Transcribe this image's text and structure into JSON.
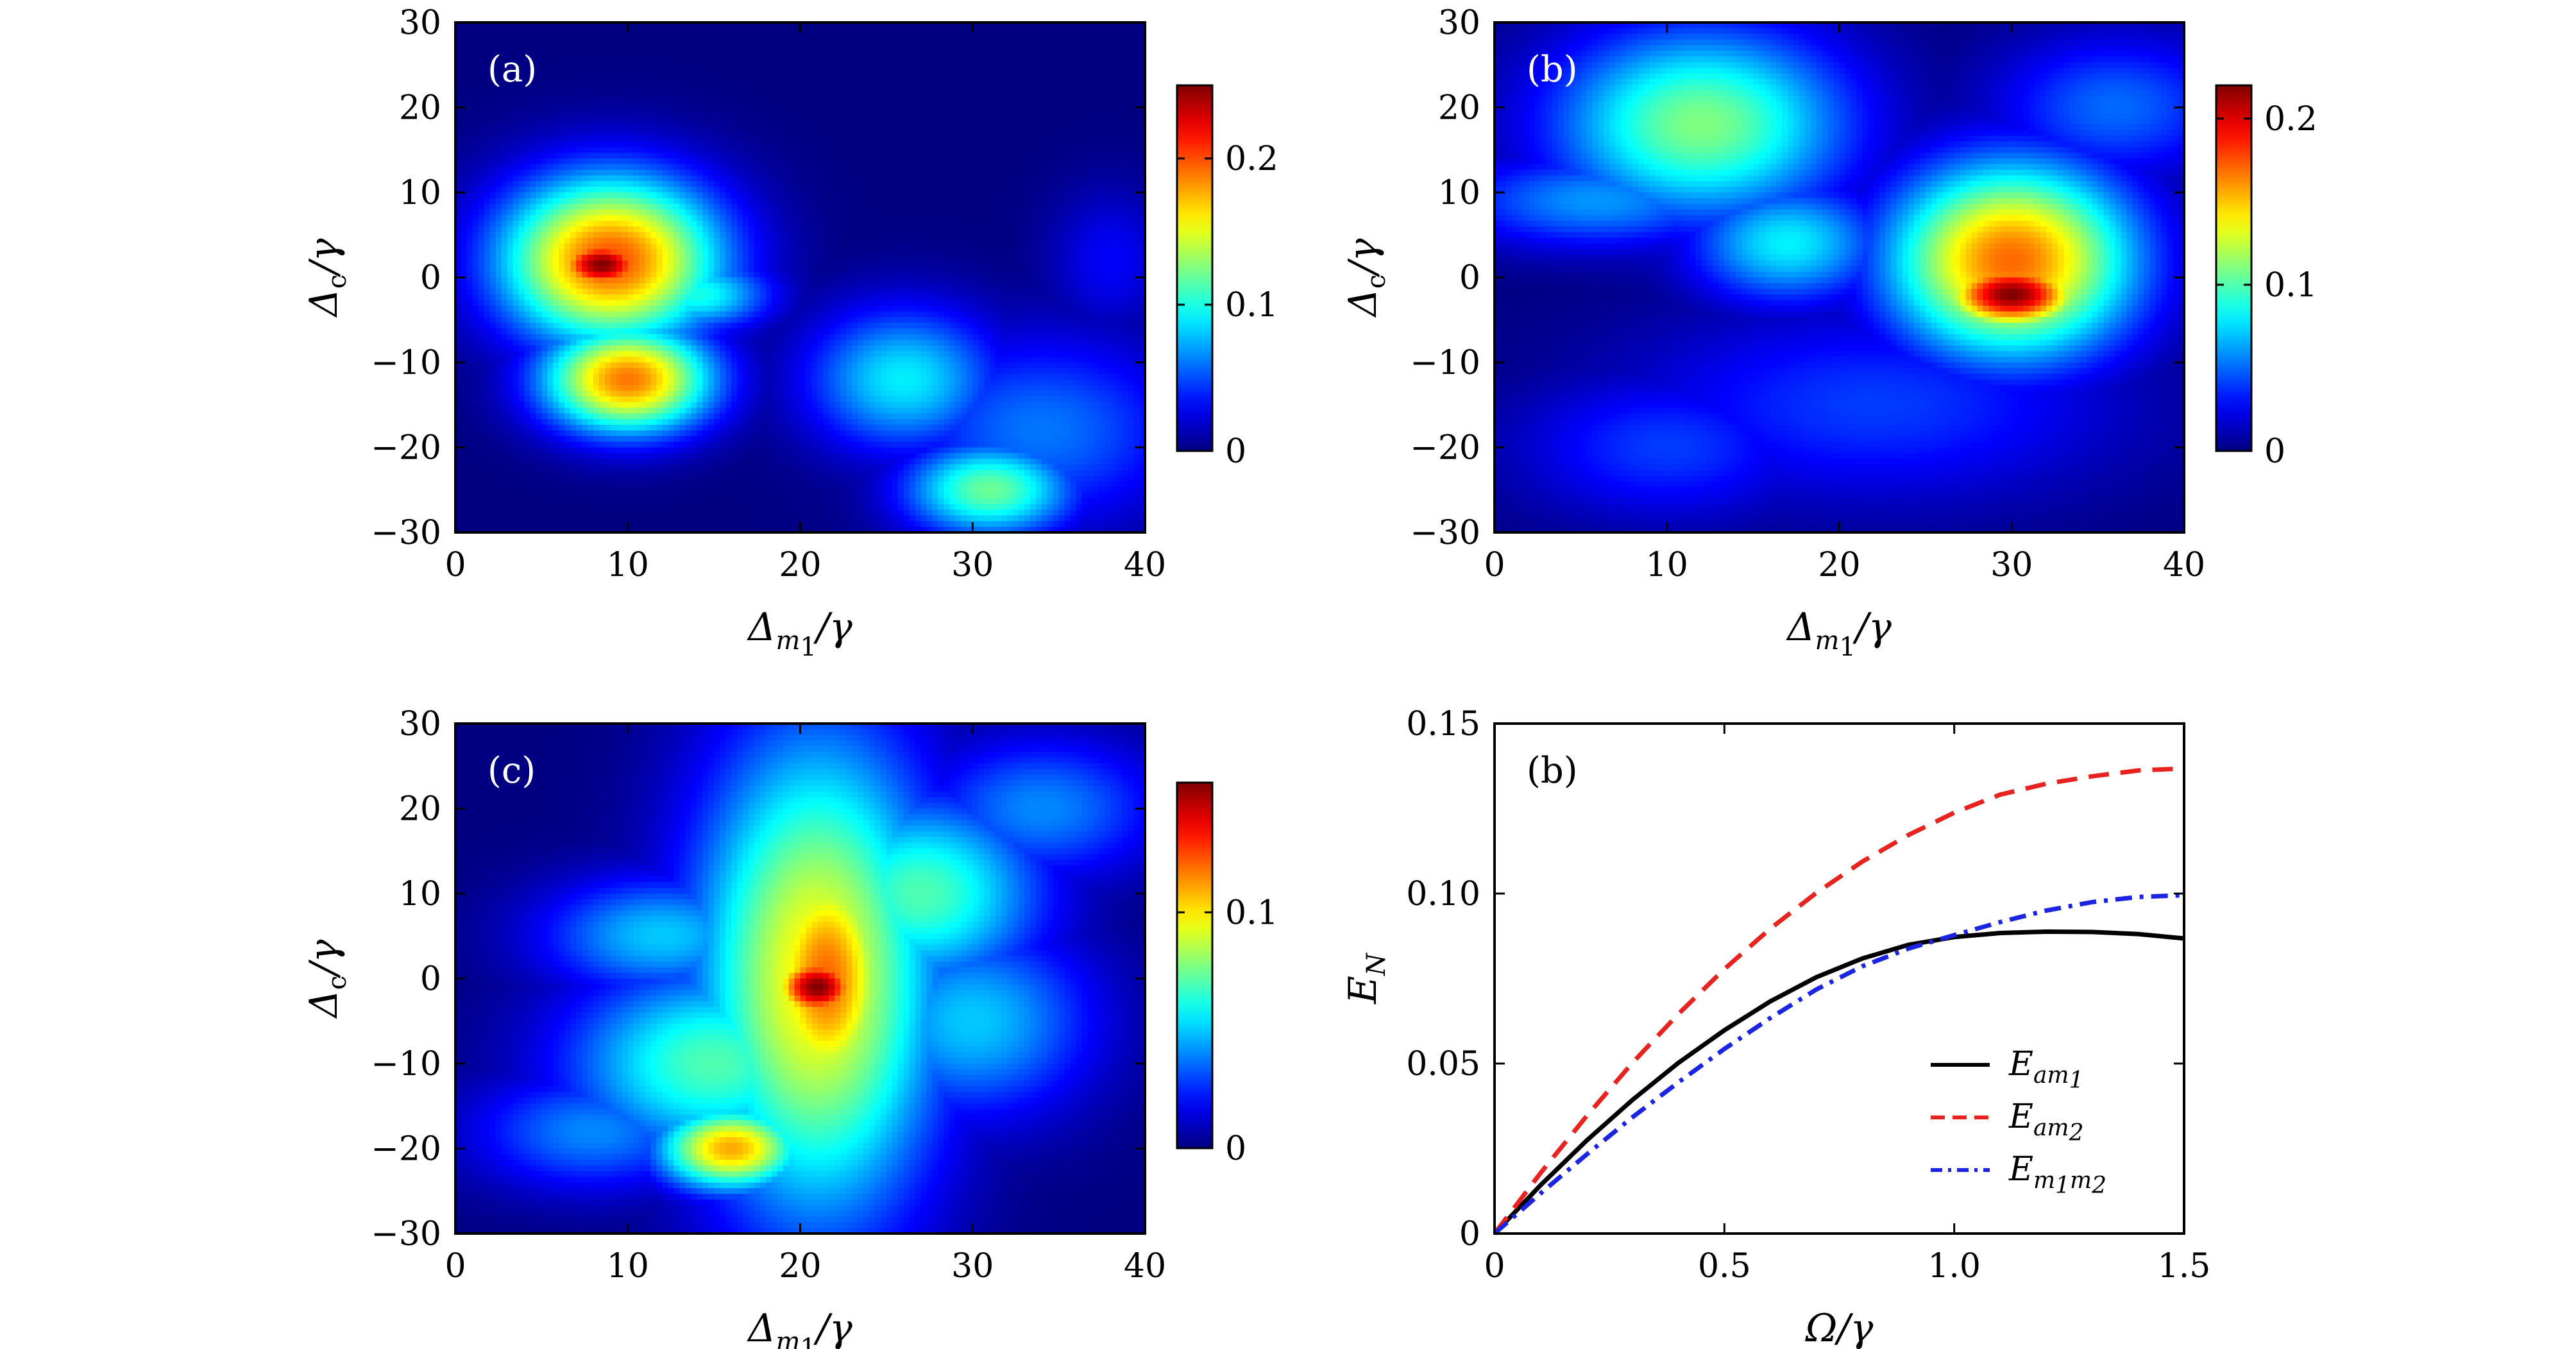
{
  "chart_data": [
    {
      "type": "heatmap",
      "panel_label": "(a)",
      "xlabel": {
        "main": "Δ",
        "sub": "m",
        "subsub": "1",
        "suffix": "/γ"
      },
      "ylabel": {
        "main": "Δ",
        "sub": "c",
        "suffix": "/γ"
      },
      "xlim": [
        0,
        40
      ],
      "ylim": [
        -30,
        30
      ],
      "xticks": [
        0,
        10,
        20,
        30,
        40
      ],
      "yticks": [
        -30,
        -20,
        -10,
        0,
        10,
        20,
        30
      ],
      "colorbar": {
        "range": [
          0,
          0.25
        ],
        "ticks": [
          0,
          0.1,
          0.2
        ],
        "colormap": "jet"
      },
      "features": [
        {
          "x": 8.5,
          "y": 1.5,
          "sx": 2.2,
          "sy": 2.5,
          "value": 0.25
        },
        {
          "x": 9,
          "y": 2,
          "sx": 4.5,
          "sy": 7,
          "value": 0.2
        },
        {
          "x": 10,
          "y": -12,
          "sx": 3.5,
          "sy": 4.5,
          "value": 0.19
        },
        {
          "x": 14,
          "y": -2,
          "sx": 3,
          "sy": 3,
          "value": 0.1
        },
        {
          "x": 26,
          "y": -12,
          "sx": 4,
          "sy": 6,
          "value": 0.09
        },
        {
          "x": 31,
          "y": -25,
          "sx": 3.5,
          "sy": 4,
          "value": 0.12
        },
        {
          "x": 34,
          "y": -18,
          "sx": 6,
          "sy": 8,
          "value": 0.06
        },
        {
          "x": 38,
          "y": 2,
          "sx": 2.5,
          "sy": 6,
          "value": 0.03
        }
      ]
    },
    {
      "type": "heatmap",
      "panel_label": "(b)",
      "xlabel": {
        "main": "Δ",
        "sub": "m",
        "subsub": "1",
        "suffix": "/γ"
      },
      "ylabel": {
        "main": "Δ",
        "sub": "c",
        "suffix": "/γ"
      },
      "xlim": [
        0,
        40
      ],
      "ylim": [
        -30,
        30
      ],
      "xticks": [
        0,
        10,
        20,
        30,
        40
      ],
      "yticks": [
        -30,
        -20,
        -10,
        0,
        10,
        20,
        30
      ],
      "colorbar": {
        "range": [
          0,
          0.22
        ],
        "ticks": [
          0,
          0.1,
          0.2
        ],
        "colormap": "jet"
      },
      "features": [
        {
          "x": 30,
          "y": -2,
          "sx": 3,
          "sy": 3,
          "value": 0.22
        },
        {
          "x": 30,
          "y": 2,
          "sx": 5,
          "sy": 8,
          "value": 0.17
        },
        {
          "x": 12,
          "y": 18,
          "sx": 6,
          "sy": 8,
          "value": 0.11
        },
        {
          "x": 17,
          "y": 4,
          "sx": 4,
          "sy": 5,
          "value": 0.08
        },
        {
          "x": 6,
          "y": 9,
          "sx": 6,
          "sy": 4,
          "value": 0.06
        },
        {
          "x": 22,
          "y": -15,
          "sx": 10,
          "sy": 8,
          "value": 0.04
        },
        {
          "x": 36,
          "y": 20,
          "sx": 5,
          "sy": 6,
          "value": 0.05
        },
        {
          "x": 10,
          "y": -20,
          "sx": 6,
          "sy": 6,
          "value": 0.04
        }
      ]
    },
    {
      "type": "heatmap",
      "panel_label": "(c)",
      "xlabel": {
        "main": "Δ",
        "sub": "m",
        "subsub": "1",
        "suffix": "/γ"
      },
      "ylabel": {
        "main": "Δ",
        "sub": "c",
        "suffix": "/γ"
      },
      "xlim": [
        0,
        40
      ],
      "ylim": [
        -30,
        30
      ],
      "xticks": [
        0,
        10,
        20,
        30,
        40
      ],
      "yticks": [
        -30,
        -20,
        -10,
        0,
        10,
        20,
        30
      ],
      "colorbar": {
        "range": [
          0,
          0.155
        ],
        "ticks": [
          0,
          0.1
        ],
        "colormap": "jet"
      },
      "features": [
        {
          "x": 21,
          "y": -1,
          "sx": 2,
          "sy": 3,
          "value": 0.155
        },
        {
          "x": 21.5,
          "y": 0,
          "sx": 3,
          "sy": 12,
          "value": 0.12
        },
        {
          "x": 21,
          "y": 0,
          "sx": 5,
          "sy": 20,
          "value": 0.1
        },
        {
          "x": 16,
          "y": -20,
          "sx": 3,
          "sy": 3.5,
          "value": 0.11
        },
        {
          "x": 27,
          "y": 10,
          "sx": 5,
          "sy": 8,
          "value": 0.07
        },
        {
          "x": 15,
          "y": -10,
          "sx": 6,
          "sy": 8,
          "value": 0.07
        },
        {
          "x": 12,
          "y": 5,
          "sx": 5,
          "sy": 5,
          "value": 0.05
        },
        {
          "x": 30,
          "y": -5,
          "sx": 5,
          "sy": 8,
          "value": 0.05
        },
        {
          "x": 34,
          "y": 20,
          "sx": 5,
          "sy": 6,
          "value": 0.04
        },
        {
          "x": 8,
          "y": -18,
          "sx": 5,
          "sy": 5,
          "value": 0.04
        }
      ]
    },
    {
      "type": "line",
      "panel_label": "(b)",
      "xlabel": {
        "main": "Ω",
        "suffix": "/γ"
      },
      "ylabel": {
        "main": "E",
        "sub": "N"
      },
      "xlim": [
        0,
        1.5
      ],
      "ylim": [
        0,
        0.15
      ],
      "xticks": [
        0,
        0.5,
        1.0,
        1.5
      ],
      "xtick_labels": [
        "0",
        "0.5",
        "1.0",
        "1.5"
      ],
      "yticks": [
        0,
        0.05,
        0.1,
        0.15
      ],
      "ytick_labels": [
        "0",
        "0.05",
        "0.10",
        "0.15"
      ],
      "x": [
        0,
        0.1,
        0.2,
        0.3,
        0.4,
        0.5,
        0.6,
        0.7,
        0.8,
        0.9,
        1.0,
        1.1,
        1.2,
        1.3,
        1.4,
        1.5
      ],
      "series": [
        {
          "legend": {
            "main": "E",
            "sub": "am",
            "subsub": "1"
          },
          "color": "#000000",
          "dash": "solid",
          "values": [
            0,
            0.0142,
            0.0273,
            0.0393,
            0.0502,
            0.0598,
            0.0683,
            0.0754,
            0.0809,
            0.0849,
            0.0872,
            0.0884,
            0.0888,
            0.0887,
            0.0881,
            0.0868
          ]
        },
        {
          "legend": {
            "main": "E",
            "sub": "am",
            "subsub": "2"
          },
          "color": "#e8231f",
          "dash": "dashed",
          "values": [
            0,
            0.0178,
            0.0345,
            0.0502,
            0.0646,
            0.0778,
            0.0897,
            0.1002,
            0.1094,
            0.1172,
            0.1238,
            0.1291,
            0.1323,
            0.1345,
            0.1362,
            0.1368
          ]
        },
        {
          "legend": {
            "main": "E",
            "sub": "m",
            "subsub": "1",
            "sub2": "m",
            "subsub2": "2"
          },
          "color": "#1b24e0",
          "dash": "dashdot",
          "values": [
            0,
            0.0118,
            0.0232,
            0.0342,
            0.0445,
            0.0543,
            0.0634,
            0.0718,
            0.0786,
            0.0838,
            0.0878,
            0.0916,
            0.095,
            0.0975,
            0.099,
            0.0995
          ]
        }
      ]
    }
  ]
}
